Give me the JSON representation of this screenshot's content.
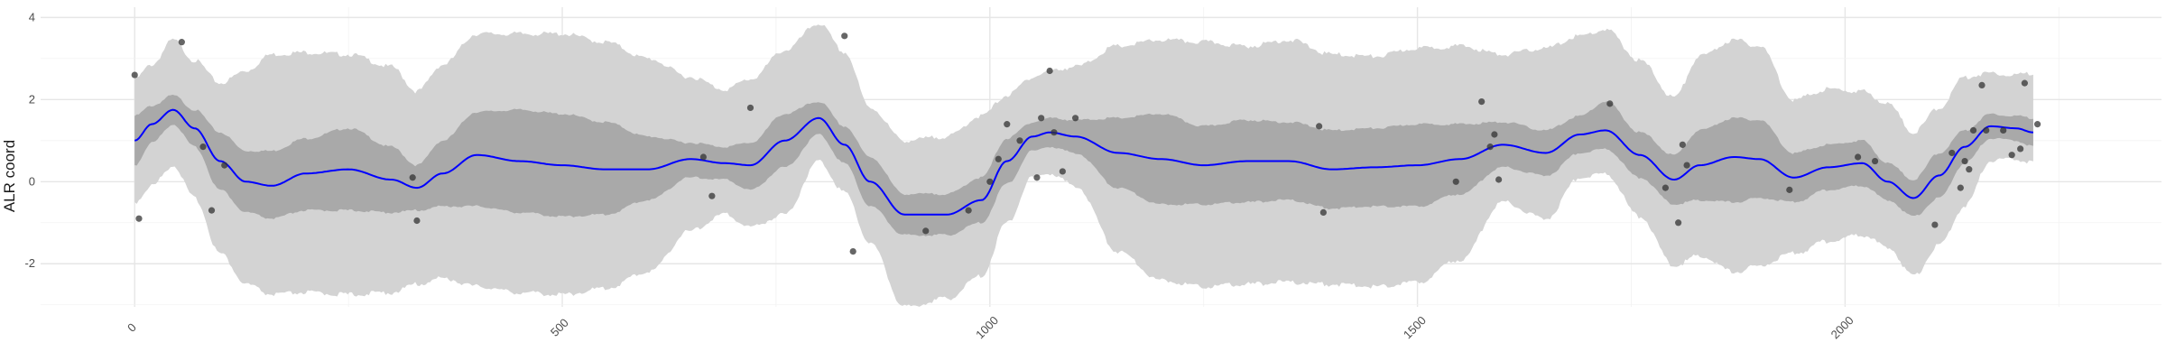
{
  "chart_data": {
    "type": "line",
    "title": "",
    "xlabel": "",
    "ylabel": "ALR coord",
    "xlim": [
      -110,
      2370
    ],
    "ylim": [
      -3.05,
      4.25
    ],
    "x_ticks": [
      0,
      500,
      1000,
      1500,
      2000
    ],
    "x_tick_labels": [
      "0",
      "500",
      "1000",
      "1500",
      "2000"
    ],
    "y_ticks": [
      -2,
      0,
      2,
      4
    ],
    "y_tick_labels": [
      "-2",
      "0",
      "2",
      "4"
    ],
    "grid": true,
    "legend": "none",
    "colors": {
      "outer_band": "#d3d3d3",
      "inner_band": "#a9a9a9",
      "mean_line": "#0000ff",
      "points": "#333333",
      "grid": "#e6e6e6"
    },
    "series": [
      {
        "type": "line",
        "x": [
          0,
          20,
          45,
          70,
          100,
          130,
          160,
          200,
          250,
          300,
          330,
          360,
          400,
          450,
          500,
          550,
          600,
          650,
          690,
          720,
          760,
          800,
          830,
          860,
          900,
          950,
          990,
          1020,
          1050,
          1070,
          1100,
          1150,
          1200,
          1250,
          1300,
          1350,
          1400,
          1450,
          1500,
          1550,
          1600,
          1650,
          1690,
          1720,
          1760,
          1800,
          1830,
          1870,
          1900,
          1940,
          1980,
          2020,
          2050,
          2080,
          2110,
          2140,
          2170,
          2200,
          2220
        ],
        "values": [
          1.0,
          1.4,
          1.75,
          1.3,
          0.5,
          0.0,
          -0.1,
          0.2,
          0.3,
          0.05,
          -0.15,
          0.2,
          0.65,
          0.5,
          0.4,
          0.3,
          0.3,
          0.55,
          0.45,
          0.4,
          1.0,
          1.55,
          0.9,
          0.0,
          -0.8,
          -0.8,
          -0.45,
          0.5,
          1.1,
          1.2,
          1.1,
          0.7,
          0.55,
          0.4,
          0.5,
          0.5,
          0.3,
          0.35,
          0.4,
          0.55,
          0.9,
          0.7,
          1.15,
          1.25,
          0.65,
          0.05,
          0.4,
          0.6,
          0.55,
          0.1,
          0.35,
          0.45,
          0.0,
          -0.4,
          0.15,
          0.85,
          1.35,
          1.3,
          1.2
        ]
      },
      {
        "type": "band",
        "x": [
          0,
          20,
          45,
          70,
          100,
          130,
          160,
          200,
          250,
          300,
          330,
          360,
          400,
          450,
          500,
          550,
          600,
          650,
          690,
          720,
          760,
          800,
          830,
          860,
          900,
          950,
          990,
          1020,
          1050,
          1070,
          1100,
          1150,
          1200,
          1250,
          1300,
          1350,
          1400,
          1450,
          1500,
          1550,
          1600,
          1650,
          1690,
          1720,
          1760,
          1800,
          1830,
          1870,
          1900,
          1940,
          1980,
          2020,
          2050,
          2080,
          2110,
          2140,
          2170,
          2200,
          2220
        ],
        "lower": [
          0.4,
          0.95,
          1.4,
          0.85,
          -0.2,
          -0.75,
          -0.9,
          -0.7,
          -0.7,
          -0.75,
          -0.7,
          -0.6,
          -0.6,
          -0.75,
          -0.85,
          -0.8,
          -0.45,
          0.1,
          0.05,
          -0.2,
          0.35,
          1.15,
          0.45,
          -0.6,
          -1.3,
          -1.3,
          -1.0,
          -0.05,
          0.75,
          0.85,
          0.7,
          -0.15,
          -0.55,
          -0.55,
          -0.5,
          -0.45,
          -0.65,
          -0.6,
          -0.6,
          -0.3,
          0.35,
          0.15,
          0.7,
          0.8,
          0.1,
          -0.55,
          -0.45,
          -0.5,
          -0.4,
          -0.5,
          -0.2,
          -0.1,
          -0.45,
          -0.85,
          -0.4,
          0.45,
          1.05,
          1.0,
          0.85
        ],
        "upper": [
          1.6,
          1.85,
          2.1,
          1.75,
          1.2,
          0.75,
          0.75,
          1.05,
          1.3,
          0.85,
          0.4,
          1.0,
          1.7,
          1.75,
          1.65,
          1.45,
          1.1,
          0.95,
          0.85,
          0.95,
          1.65,
          1.95,
          1.35,
          0.6,
          -0.3,
          -0.3,
          0.1,
          1.05,
          1.45,
          1.55,
          1.5,
          1.55,
          1.65,
          1.35,
          1.5,
          1.45,
          1.25,
          1.3,
          1.4,
          1.4,
          1.45,
          1.25,
          1.6,
          1.95,
          1.2,
          0.65,
          1.25,
          1.55,
          1.5,
          0.7,
          0.9,
          1.0,
          0.45,
          0.05,
          0.7,
          1.25,
          1.65,
          1.6,
          1.55
        ]
      },
      {
        "type": "band",
        "x": [
          0,
          20,
          45,
          70,
          100,
          130,
          160,
          200,
          250,
          300,
          330,
          360,
          400,
          450,
          500,
          550,
          600,
          650,
          690,
          720,
          760,
          800,
          830,
          860,
          900,
          950,
          990,
          1020,
          1050,
          1070,
          1100,
          1150,
          1200,
          1250,
          1300,
          1350,
          1400,
          1450,
          1500,
          1550,
          1600,
          1650,
          1690,
          1720,
          1760,
          1800,
          1830,
          1870,
          1900,
          1940,
          1980,
          2020,
          2050,
          2080,
          2110,
          2140,
          2170,
          2200,
          2220
        ],
        "lower": [
          -0.5,
          -0.1,
          0.4,
          -0.4,
          -1.75,
          -2.5,
          -2.75,
          -2.7,
          -2.75,
          -2.7,
          -2.5,
          -2.35,
          -2.55,
          -2.7,
          -2.75,
          -2.6,
          -2.2,
          -1.2,
          -0.8,
          -1.1,
          -0.8,
          0.5,
          -0.25,
          -1.5,
          -3.05,
          -2.85,
          -2.3,
          -1.0,
          0.1,
          0.2,
          -0.1,
          -1.7,
          -2.4,
          -2.55,
          -2.5,
          -2.45,
          -2.5,
          -2.55,
          -2.45,
          -1.9,
          -0.5,
          -0.9,
          0.1,
          0.2,
          -0.85,
          -2.05,
          -1.8,
          -2.2,
          -2.05,
          -1.75,
          -1.45,
          -1.3,
          -1.6,
          -2.3,
          -1.55,
          -0.6,
          0.5,
          0.55,
          0.45
        ],
        "upper": [
          2.5,
          2.85,
          3.45,
          2.95,
          2.4,
          2.7,
          3.1,
          3.15,
          3.1,
          2.8,
          2.2,
          2.85,
          3.6,
          3.6,
          3.6,
          3.4,
          3.0,
          2.55,
          2.25,
          2.5,
          3.2,
          3.85,
          3.15,
          1.8,
          1.0,
          1.1,
          1.6,
          2.1,
          2.55,
          2.7,
          2.8,
          3.3,
          3.45,
          3.4,
          3.3,
          3.45,
          3.1,
          3.05,
          3.25,
          3.3,
          3.1,
          3.25,
          3.55,
          3.7,
          2.95,
          2.05,
          3.05,
          3.45,
          3.3,
          2.0,
          2.25,
          2.2,
          1.9,
          1.2,
          1.8,
          2.55,
          2.65,
          2.6,
          2.65
        ]
      },
      {
        "type": "scatter",
        "x": [
          0,
          5,
          55,
          80,
          90,
          105,
          325,
          330,
          665,
          675,
          720,
          830,
          840,
          925,
          975,
          1000,
          1010,
          1020,
          1035,
          1055,
          1060,
          1070,
          1075,
          1085,
          1100,
          1385,
          1390,
          1545,
          1575,
          1585,
          1590,
          1595,
          1725,
          1790,
          1805,
          1810,
          1815,
          1935,
          2015,
          2035,
          2105,
          2125,
          2135,
          2140,
          2145,
          2150,
          2160,
          2165,
          2185,
          2195,
          2205,
          2210,
          2225
        ],
        "values": [
          2.6,
          -0.9,
          3.4,
          0.85,
          -0.7,
          0.4,
          0.1,
          -0.95,
          0.6,
          -0.35,
          1.8,
          3.55,
          -1.7,
          -1.2,
          -0.7,
          0.0,
          0.55,
          1.4,
          1.0,
          0.1,
          1.55,
          2.7,
          1.2,
          0.25,
          1.55,
          1.35,
          -0.75,
          0.0,
          1.95,
          0.85,
          1.15,
          0.05,
          1.9,
          -0.15,
          -1.0,
          0.9,
          0.4,
          -0.2,
          0.6,
          0.5,
          -1.05,
          0.7,
          -0.15,
          0.5,
          0.3,
          1.25,
          2.35,
          1.25,
          1.25,
          0.65,
          0.8,
          2.4,
          1.4
        ]
      }
    ]
  }
}
